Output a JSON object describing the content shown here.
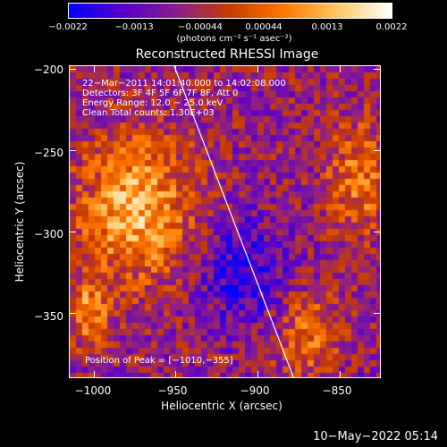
{
  "chart_data": {
    "type": "heatmap",
    "title": "Reconstructed RHESSI Image",
    "xlabel": "Heliocentric X (arcsec)",
    "ylabel": "Heliocentric Y (arcsec)",
    "xlim": [
      -1015,
      -825
    ],
    "ylim": [
      -390,
      -198
    ],
    "x_ticks": [
      -1000,
      -950,
      -900,
      -850
    ],
    "x_tick_labels": [
      "−1000",
      "−950",
      "−900",
      "−850"
    ],
    "y_ticks": [
      -200,
      -250,
      -300,
      -350
    ],
    "y_tick_labels": [
      "−200",
      "−250",
      "−300",
      "−350"
    ],
    "colorbar": {
      "range": [
        -0.0022,
        0.0022
      ],
      "tick_values": [
        -0.0022,
        -0.0013,
        -0.00044,
        0.00044,
        0.0013,
        0.0022
      ],
      "tick_labels": [
        "−0.0022",
        "−0.0013",
        "−0.00044",
        "0.00044",
        "0.0013",
        "0.0022"
      ],
      "units": "(photons cm⁻² s⁻¹ asec⁻²)",
      "colors": [
        "#0000ff",
        "#5a00c8",
        "#8a1e8c",
        "#c83c00",
        "#ff7800",
        "#ffc864",
        "#ffffff"
      ]
    },
    "annotations": [
      "22−Mar−2011 14:01:40.000 to 14:02:08.000",
      "Detectors: 3F 4F 5F 6F 7F 8F, Att 0",
      "Energy Range: 12.0 − 25.0 keV",
      "Clean     Total counts: 1.30E+03"
    ],
    "peak_label": "Position of Peak = [−1010,−355]",
    "peak_position": [
      -1010,
      -355
    ],
    "limb_line": [
      [
        -951,
        -198
      ],
      [
        -878,
        -390
      ]
    ],
    "limb_color": "#ffffff"
  },
  "timestamp": "10−May−2022 05:14"
}
